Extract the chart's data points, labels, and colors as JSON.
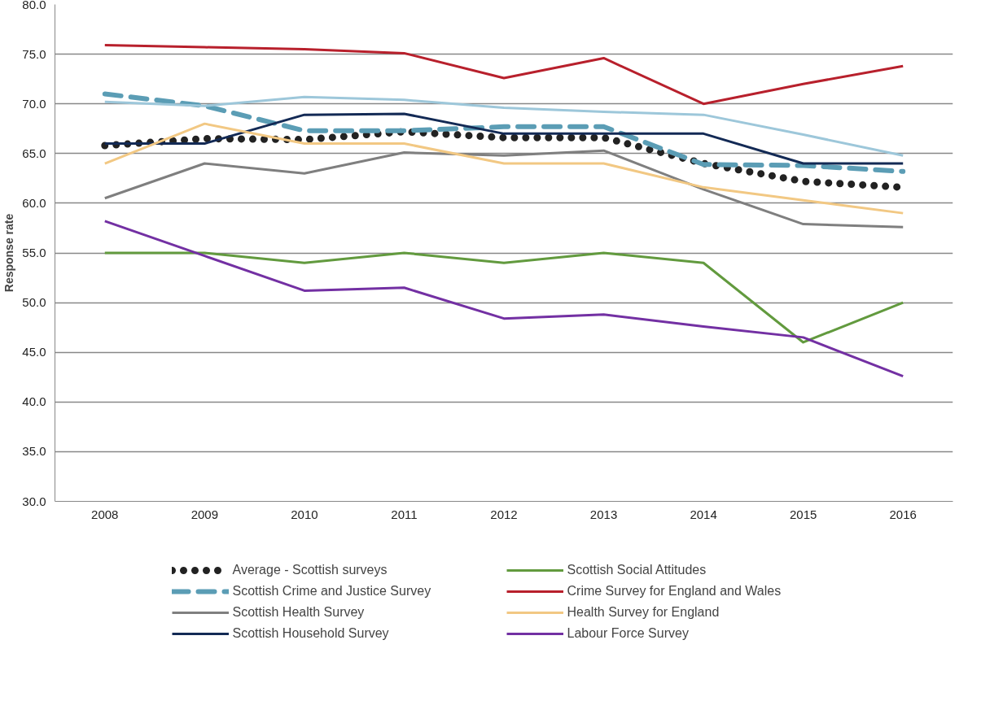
{
  "chart_data": {
    "type": "line",
    "ylabel": "Response rate",
    "categories": [
      "2008",
      "2009",
      "2010",
      "2011",
      "2012",
      "2013",
      "2014",
      "2015",
      "2016"
    ],
    "ylim": [
      30,
      80
    ],
    "yticks": [
      {
        "value": 30,
        "label": "30.0"
      },
      {
        "value": 35,
        "label": "35.0"
      },
      {
        "value": 40,
        "label": "40.0"
      },
      {
        "value": 45,
        "label": "45.0"
      },
      {
        "value": 50,
        "label": "50.0"
      },
      {
        "value": 55,
        "label": "55.0"
      },
      {
        "value": 60,
        "label": "60.0"
      },
      {
        "value": 65,
        "label": "65.0"
      },
      {
        "value": 70,
        "label": "70.0"
      },
      {
        "value": 75,
        "label": "75.0"
      },
      {
        "value": 80,
        "label": "80.0"
      }
    ],
    "grid": "y",
    "legend": "bottom",
    "series": [
      {
        "name": "Average - Scottish surveys",
        "color": "#222222",
        "line_style": "dotted",
        "values": [
          65.8,
          66.5,
          66.4,
          67.2,
          66.6,
          66.6,
          64.0,
          62.2,
          61.6
        ]
      },
      {
        "name": "Scottish Crime and Justice Survey",
        "color": "#5b9db5",
        "line_style": "dashed",
        "values": [
          71.0,
          69.8,
          67.3,
          67.3,
          67.7,
          67.7,
          63.9,
          63.8,
          63.2
        ]
      },
      {
        "name": "Scottish Health Survey",
        "color": "#7f7f7f",
        "values": [
          60.5,
          64.0,
          63.0,
          65.1,
          64.8,
          65.3,
          61.4,
          57.9,
          57.6
        ]
      },
      {
        "name": "Scottish Household Survey",
        "color": "#132a55",
        "values": [
          66.0,
          66.0,
          68.9,
          69.0,
          67.0,
          67.0,
          67.0,
          64.0,
          64.0
        ]
      },
      {
        "name": "Scottish Social Attitudes",
        "color": "#629a3e",
        "values": [
          55,
          55,
          54,
          55,
          54,
          55,
          54,
          46,
          50
        ]
      },
      {
        "name": "Crime Survey for England and Wales",
        "color": "#b8202c",
        "values": [
          75.9,
          75.7,
          75.5,
          75.1,
          72.6,
          74.6,
          70.0,
          72.0,
          73.8
        ]
      },
      {
        "name": "Health Survey for England",
        "color": "#f2c883",
        "values": [
          64.0,
          68.0,
          66.0,
          66.0,
          64.0,
          64.0,
          61.6,
          60.3,
          59.0
        ]
      },
      {
        "color": "#9dc7da",
        "values": [
          70.2,
          69.8,
          70.7,
          70.4,
          69.6,
          69.2,
          68.9,
          66.9,
          64.8
        ]
      },
      {
        "name": "Labour Force Survey",
        "color": "#7330a3",
        "values": [
          58.2,
          54.7,
          51.2,
          51.5,
          48.4,
          48.8,
          47.6,
          46.5,
          42.6
        ]
      }
    ]
  }
}
